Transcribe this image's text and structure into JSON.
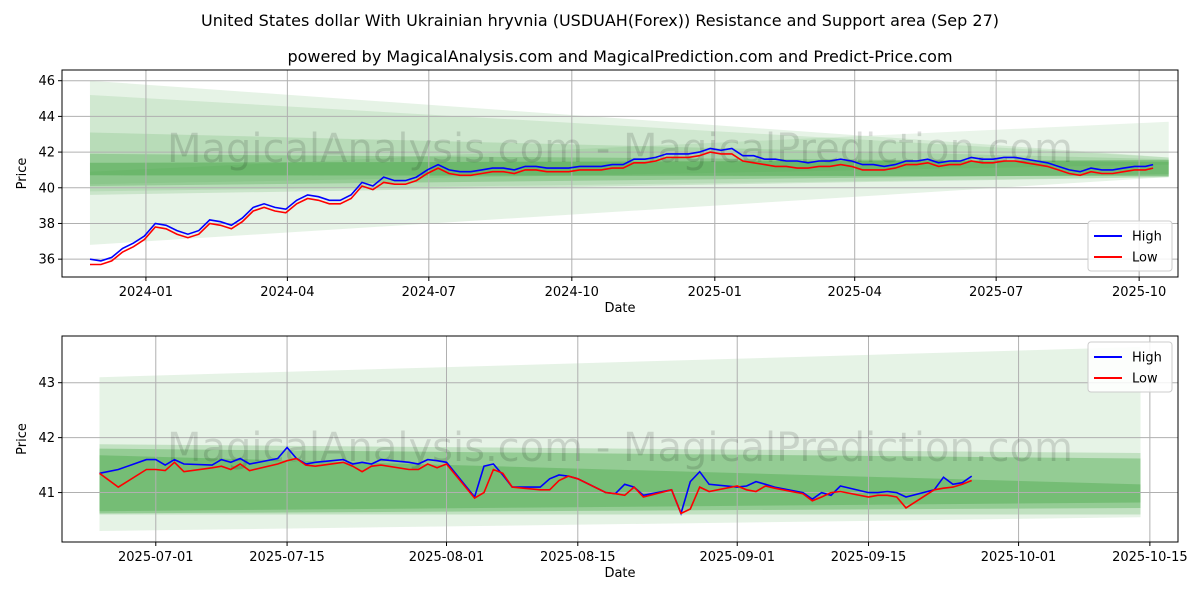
{
  "title": "United States dollar With Ukrainian hryvnia (USDUAH(Forex)) Resistance and Support area (Sep 27)",
  "subtitle": "powered by MagicalAnalysis.com and MagicalPrediction.com and Predict-Price.com",
  "watermark": "MagicalAnalysis.com - MagicalPrediction.com",
  "colors": {
    "high": "#0000ff",
    "low": "#ff0000",
    "band": "#2e9a2e",
    "grid": "#b0b0b0"
  },
  "chart_data": [
    {
      "type": "line",
      "panel": "top",
      "xlabel": "Date",
      "ylabel": "Price",
      "xlim": [
        "2023-11-08",
        "2025-10-26"
      ],
      "ylim": [
        35.0,
        46.6
      ],
      "x_ticks": [
        "2024-01",
        "2024-04",
        "2024-07",
        "2024-10",
        "2025-01",
        "2025-04",
        "2025-07",
        "2025-10"
      ],
      "x_tick_dates": [
        "2024-01-01",
        "2024-04-01",
        "2024-07-01",
        "2024-10-01",
        "2025-01-01",
        "2025-04-01",
        "2025-07-01",
        "2025-10-01"
      ],
      "y_ticks": [
        36,
        38,
        40,
        42,
        44,
        46
      ],
      "legend": {
        "position": "lower-right",
        "entries": [
          "High",
          "Low"
        ]
      },
      "bands": [
        {
          "x": [
            "2023-11-26",
            "2025-10-20"
          ],
          "upper": [
            46.0,
            41.7
          ],
          "lower": [
            36.8,
            40.6
          ],
          "opacity": 0.12
        },
        {
          "x": [
            "2023-11-26",
            "2025-10-20"
          ],
          "upper": [
            45.2,
            41.7
          ],
          "lower": [
            39.8,
            40.6
          ],
          "opacity": 0.12
        },
        {
          "x": [
            "2023-11-26",
            "2025-10-20"
          ],
          "upper": [
            43.1,
            41.6
          ],
          "lower": [
            39.6,
            40.6
          ],
          "opacity": 0.15
        },
        {
          "x": [
            "2023-11-26",
            "2025-10-20"
          ],
          "upper": [
            41.4,
            41.55
          ],
          "lower": [
            40.7,
            40.65
          ],
          "opacity": 0.35
        },
        {
          "x": [
            "2023-11-26",
            "2025-10-20"
          ],
          "upper": [
            40.9,
            43.7
          ],
          "lower": [
            40.2,
            41.3
          ],
          "opacity": 0.1
        },
        {
          "x": [
            "2023-11-26",
            "2025-10-20"
          ],
          "upper": [
            41.9,
            41.45
          ],
          "lower": [
            40.1,
            40.75
          ],
          "opacity": 0.25
        }
      ],
      "series": [
        {
          "name": "High",
          "x": [
            "2023-11-26",
            "2023-12-03",
            "2023-12-10",
            "2023-12-17",
            "2023-12-24",
            "2023-12-31",
            "2024-01-07",
            "2024-01-14",
            "2024-01-21",
            "2024-01-28",
            "2024-02-04",
            "2024-02-11",
            "2024-02-18",
            "2024-02-25",
            "2024-03-03",
            "2024-03-10",
            "2024-03-17",
            "2024-03-24",
            "2024-03-31",
            "2024-04-07",
            "2024-04-14",
            "2024-04-21",
            "2024-04-28",
            "2024-05-05",
            "2024-05-12",
            "2024-05-19",
            "2024-05-26",
            "2024-06-02",
            "2024-06-09",
            "2024-06-16",
            "2024-06-23",
            "2024-06-30",
            "2024-07-07",
            "2024-07-14",
            "2024-07-21",
            "2024-07-28",
            "2024-08-04",
            "2024-08-11",
            "2024-08-18",
            "2024-08-25",
            "2024-09-01",
            "2024-09-08",
            "2024-09-15",
            "2024-09-22",
            "2024-09-29",
            "2024-10-06",
            "2024-10-13",
            "2024-10-20",
            "2024-10-27",
            "2024-11-03",
            "2024-11-10",
            "2024-11-17",
            "2024-11-24",
            "2024-12-01",
            "2024-12-08",
            "2024-12-15",
            "2024-12-22",
            "2024-12-29",
            "2025-01-05",
            "2025-01-12",
            "2025-01-19",
            "2025-01-26",
            "2025-02-02",
            "2025-02-09",
            "2025-02-16",
            "2025-02-23",
            "2025-03-02",
            "2025-03-09",
            "2025-03-16",
            "2025-03-23",
            "2025-03-30",
            "2025-04-06",
            "2025-04-13",
            "2025-04-20",
            "2025-04-27",
            "2025-05-04",
            "2025-05-11",
            "2025-05-18",
            "2025-05-25",
            "2025-06-01",
            "2025-06-08",
            "2025-06-15",
            "2025-06-22",
            "2025-06-29",
            "2025-07-06",
            "2025-07-13",
            "2025-07-20",
            "2025-07-27",
            "2025-08-03",
            "2025-08-10",
            "2025-08-17",
            "2025-08-24",
            "2025-08-31",
            "2025-09-07",
            "2025-09-14",
            "2025-09-21",
            "2025-09-28",
            "2025-10-05",
            "2025-10-10"
          ],
          "values": [
            36.0,
            35.9,
            36.1,
            36.6,
            36.9,
            37.3,
            38.0,
            37.9,
            37.6,
            37.4,
            37.6,
            38.2,
            38.1,
            37.9,
            38.3,
            38.9,
            39.1,
            38.9,
            38.8,
            39.3,
            39.6,
            39.5,
            39.3,
            39.3,
            39.6,
            40.3,
            40.1,
            40.6,
            40.4,
            40.4,
            40.6,
            41.0,
            41.3,
            41.0,
            40.9,
            40.9,
            41.0,
            41.1,
            41.1,
            41.0,
            41.2,
            41.2,
            41.1,
            41.1,
            41.1,
            41.2,
            41.2,
            41.2,
            41.3,
            41.3,
            41.6,
            41.6,
            41.7,
            41.9,
            41.9,
            41.9,
            42.0,
            42.2,
            42.1,
            42.2,
            41.8,
            41.8,
            41.6,
            41.6,
            41.5,
            41.5,
            41.4,
            41.5,
            41.5,
            41.6,
            41.5,
            41.3,
            41.3,
            41.2,
            41.3,
            41.5,
            41.5,
            41.6,
            41.4,
            41.5,
            41.5,
            41.7,
            41.6,
            41.6,
            41.7,
            41.7,
            41.6,
            41.5,
            41.4,
            41.2,
            41.0,
            40.9,
            41.1,
            41.0,
            41.0,
            41.1,
            41.2,
            41.2,
            41.3
          ]
        },
        {
          "name": "Low",
          "x": [
            "2023-11-26",
            "2023-12-03",
            "2023-12-10",
            "2023-12-17",
            "2023-12-24",
            "2023-12-31",
            "2024-01-07",
            "2024-01-14",
            "2024-01-21",
            "2024-01-28",
            "2024-02-04",
            "2024-02-11",
            "2024-02-18",
            "2024-02-25",
            "2024-03-03",
            "2024-03-10",
            "2024-03-17",
            "2024-03-24",
            "2024-03-31",
            "2024-04-07",
            "2024-04-14",
            "2024-04-21",
            "2024-04-28",
            "2024-05-05",
            "2024-05-12",
            "2024-05-19",
            "2024-05-26",
            "2024-06-02",
            "2024-06-09",
            "2024-06-16",
            "2024-06-23",
            "2024-06-30",
            "2024-07-07",
            "2024-07-14",
            "2024-07-21",
            "2024-07-28",
            "2024-08-04",
            "2024-08-11",
            "2024-08-18",
            "2024-08-25",
            "2024-09-01",
            "2024-09-08",
            "2024-09-15",
            "2024-09-22",
            "2024-09-29",
            "2024-10-06",
            "2024-10-13",
            "2024-10-20",
            "2024-10-27",
            "2024-11-03",
            "2024-11-10",
            "2024-11-17",
            "2024-11-24",
            "2024-12-01",
            "2024-12-08",
            "2024-12-15",
            "2024-12-22",
            "2024-12-29",
            "2025-01-05",
            "2025-01-12",
            "2025-01-19",
            "2025-01-26",
            "2025-02-02",
            "2025-02-09",
            "2025-02-16",
            "2025-02-23",
            "2025-03-02",
            "2025-03-09",
            "2025-03-16",
            "2025-03-23",
            "2025-03-30",
            "2025-04-06",
            "2025-04-13",
            "2025-04-20",
            "2025-04-27",
            "2025-05-04",
            "2025-05-11",
            "2025-05-18",
            "2025-05-25",
            "2025-06-01",
            "2025-06-08",
            "2025-06-15",
            "2025-06-22",
            "2025-06-29",
            "2025-07-06",
            "2025-07-13",
            "2025-07-20",
            "2025-07-27",
            "2025-08-03",
            "2025-08-10",
            "2025-08-17",
            "2025-08-24",
            "2025-08-31",
            "2025-09-07",
            "2025-09-14",
            "2025-09-21",
            "2025-09-28",
            "2025-10-05",
            "2025-10-10"
          ],
          "values": [
            35.7,
            35.7,
            35.9,
            36.4,
            36.7,
            37.1,
            37.8,
            37.7,
            37.4,
            37.2,
            37.4,
            38.0,
            37.9,
            37.7,
            38.1,
            38.7,
            38.9,
            38.7,
            38.6,
            39.1,
            39.4,
            39.3,
            39.1,
            39.1,
            39.4,
            40.1,
            39.9,
            40.3,
            40.2,
            40.2,
            40.4,
            40.8,
            41.1,
            40.8,
            40.7,
            40.7,
            40.8,
            40.9,
            40.9,
            40.8,
            41.0,
            41.0,
            40.9,
            40.9,
            40.9,
            41.0,
            41.0,
            41.0,
            41.1,
            41.1,
            41.4,
            41.4,
            41.5,
            41.7,
            41.7,
            41.7,
            41.8,
            42.0,
            41.9,
            41.9,
            41.5,
            41.4,
            41.3,
            41.2,
            41.2,
            41.1,
            41.1,
            41.2,
            41.2,
            41.3,
            41.2,
            41.0,
            41.0,
            41.0,
            41.1,
            41.3,
            41.3,
            41.4,
            41.2,
            41.3,
            41.3,
            41.5,
            41.4,
            41.4,
            41.5,
            41.5,
            41.4,
            41.3,
            41.2,
            41.0,
            40.8,
            40.7,
            40.9,
            40.8,
            40.8,
            40.9,
            41.0,
            41.0,
            41.1
          ]
        }
      ]
    },
    {
      "type": "line",
      "panel": "bottom",
      "xlabel": "Date",
      "ylabel": "Price",
      "xlim": [
        "2025-06-21",
        "2025-10-18"
      ],
      "ylim": [
        40.1,
        43.85
      ],
      "x_ticks": [
        "2025-07-01",
        "2025-07-15",
        "2025-08-01",
        "2025-08-15",
        "2025-09-01",
        "2025-09-15",
        "2025-10-01",
        "2025-10-15"
      ],
      "y_ticks": [
        41,
        42,
        43
      ],
      "legend": {
        "position": "upper-right",
        "entries": [
          "High",
          "Low"
        ]
      },
      "bands": [
        {
          "x": [
            "2025-06-25",
            "2025-10-14"
          ],
          "upper": [
            43.1,
            43.65
          ],
          "lower": [
            40.3,
            40.55
          ],
          "opacity": 0.12
        },
        {
          "x": [
            "2025-06-25",
            "2025-10-14"
          ],
          "upper": [
            41.88,
            41.72
          ],
          "lower": [
            40.6,
            40.6
          ],
          "opacity": 0.2
        },
        {
          "x": [
            "2025-06-25",
            "2025-10-14"
          ],
          "upper": [
            41.8,
            41.62
          ],
          "lower": [
            40.62,
            40.72
          ],
          "opacity": 0.3
        },
        {
          "x": [
            "2025-06-25",
            "2025-10-14"
          ],
          "upper": [
            41.68,
            41.15
          ],
          "lower": [
            40.66,
            40.82
          ],
          "opacity": 0.3
        }
      ],
      "series": [
        {
          "name": "High",
          "x": [
            "2025-06-25",
            "2025-06-27",
            "2025-06-30",
            "2025-07-01",
            "2025-07-02",
            "2025-07-03",
            "2025-07-04",
            "2025-07-07",
            "2025-07-08",
            "2025-07-09",
            "2025-07-10",
            "2025-07-11",
            "2025-07-14",
            "2025-07-15",
            "2025-07-16",
            "2025-07-17",
            "2025-07-18",
            "2025-07-21",
            "2025-07-22",
            "2025-07-23",
            "2025-07-24",
            "2025-07-25",
            "2025-07-28",
            "2025-07-29",
            "2025-07-30",
            "2025-07-31",
            "2025-08-01",
            "2025-08-04",
            "2025-08-05",
            "2025-08-06",
            "2025-08-07",
            "2025-08-08",
            "2025-08-11",
            "2025-08-12",
            "2025-08-13",
            "2025-08-14",
            "2025-08-15",
            "2025-08-18",
            "2025-08-19",
            "2025-08-20",
            "2025-08-21",
            "2025-08-22",
            "2025-08-25",
            "2025-08-26",
            "2025-08-27",
            "2025-08-28",
            "2025-08-29",
            "2025-09-01",
            "2025-09-02",
            "2025-09-03",
            "2025-09-04",
            "2025-09-05",
            "2025-09-08",
            "2025-09-09",
            "2025-09-10",
            "2025-09-11",
            "2025-09-12",
            "2025-09-15",
            "2025-09-16",
            "2025-09-17",
            "2025-09-18",
            "2025-09-19",
            "2025-09-22",
            "2025-09-23",
            "2025-09-24",
            "2025-09-25",
            "2025-09-26"
          ],
          "values": [
            41.35,
            41.42,
            41.6,
            41.6,
            41.5,
            41.6,
            41.52,
            41.5,
            41.6,
            41.55,
            41.62,
            41.52,
            41.62,
            41.82,
            41.62,
            41.52,
            41.55,
            41.6,
            41.52,
            41.55,
            41.52,
            41.6,
            41.55,
            41.52,
            41.6,
            41.58,
            41.55,
            40.92,
            41.48,
            41.52,
            41.32,
            41.1,
            41.1,
            41.25,
            41.32,
            41.3,
            41.25,
            41.0,
            40.98,
            41.15,
            41.1,
            40.95,
            41.05,
            40.62,
            41.2,
            41.38,
            41.15,
            41.1,
            41.12,
            41.2,
            41.15,
            41.1,
            41.0,
            40.88,
            41.0,
            40.95,
            41.12,
            41.0,
            41.0,
            41.02,
            41.0,
            40.92,
            41.05,
            41.28,
            41.15,
            41.18,
            41.3
          ]
        },
        {
          "name": "Low",
          "x": [
            "2025-06-25",
            "2025-06-27",
            "2025-06-30",
            "2025-07-01",
            "2025-07-02",
            "2025-07-03",
            "2025-07-04",
            "2025-07-07",
            "2025-07-08",
            "2025-07-09",
            "2025-07-10",
            "2025-07-11",
            "2025-07-14",
            "2025-07-15",
            "2025-07-16",
            "2025-07-17",
            "2025-07-18",
            "2025-07-21",
            "2025-07-22",
            "2025-07-23",
            "2025-07-24",
            "2025-07-25",
            "2025-07-28",
            "2025-07-29",
            "2025-07-30",
            "2025-07-31",
            "2025-08-01",
            "2025-08-04",
            "2025-08-05",
            "2025-08-06",
            "2025-08-07",
            "2025-08-08",
            "2025-08-11",
            "2025-08-12",
            "2025-08-13",
            "2025-08-14",
            "2025-08-15",
            "2025-08-18",
            "2025-08-19",
            "2025-08-20",
            "2025-08-21",
            "2025-08-22",
            "2025-08-25",
            "2025-08-26",
            "2025-08-27",
            "2025-08-28",
            "2025-08-29",
            "2025-09-01",
            "2025-09-02",
            "2025-09-03",
            "2025-09-04",
            "2025-09-05",
            "2025-09-08",
            "2025-09-09",
            "2025-09-10",
            "2025-09-11",
            "2025-09-12",
            "2025-09-15",
            "2025-09-16",
            "2025-09-17",
            "2025-09-18",
            "2025-09-19",
            "2025-09-22",
            "2025-09-23",
            "2025-09-24",
            "2025-09-25",
            "2025-09-26"
          ],
          "values": [
            41.35,
            41.1,
            41.42,
            41.42,
            41.4,
            41.55,
            41.38,
            41.45,
            41.48,
            41.42,
            41.52,
            41.4,
            41.52,
            41.58,
            41.62,
            41.5,
            41.48,
            41.55,
            41.48,
            41.38,
            41.48,
            41.5,
            41.42,
            41.42,
            41.52,
            41.45,
            41.52,
            40.9,
            41.0,
            41.42,
            41.35,
            41.1,
            41.05,
            41.05,
            41.22,
            41.3,
            41.25,
            41.0,
            40.98,
            40.95,
            41.1,
            40.92,
            41.05,
            40.62,
            40.7,
            41.1,
            41.02,
            41.12,
            41.05,
            41.02,
            41.12,
            41.08,
            40.98,
            40.85,
            40.92,
            41.0,
            41.02,
            40.92,
            40.95,
            40.95,
            40.92,
            40.72,
            41.05,
            41.08,
            41.1,
            41.15,
            41.22
          ]
        }
      ]
    }
  ]
}
